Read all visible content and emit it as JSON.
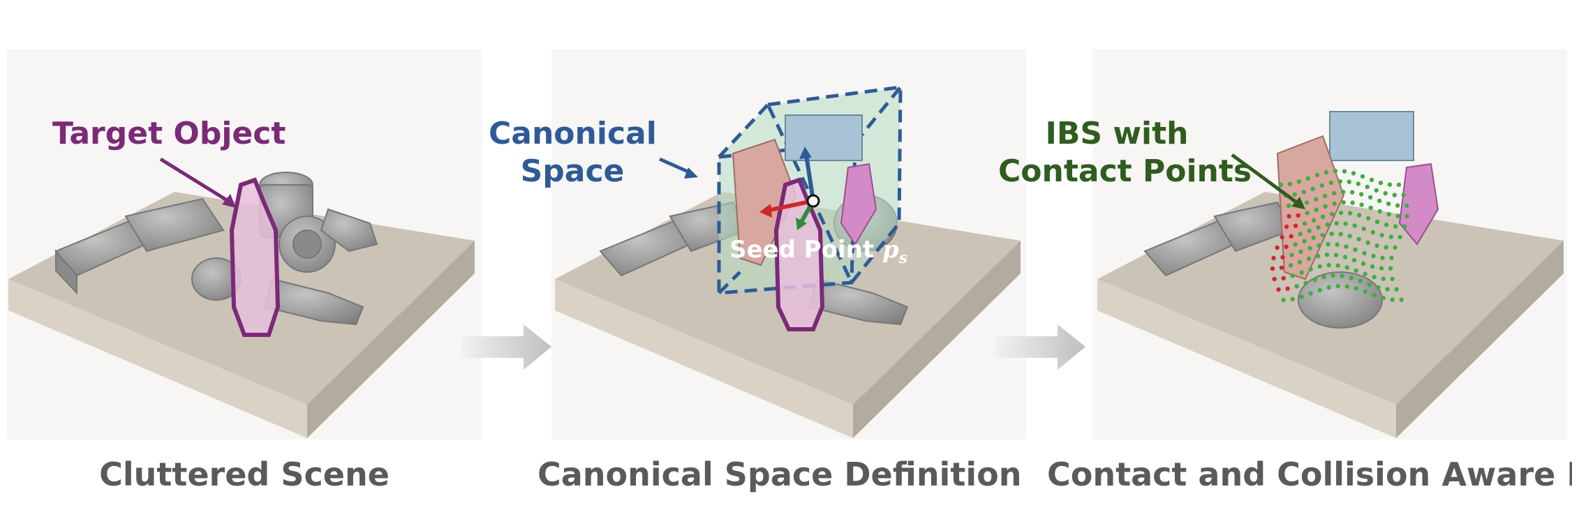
{
  "panels": [
    {
      "caption": "Cluttered Scene",
      "annotation": "Target Object"
    },
    {
      "caption": "Canonical Space Definition",
      "annotation_lines": [
        "Canonical",
        "Space"
      ],
      "seed_label": "Seed Point",
      "seed_symbol": "p",
      "seed_subscript": "s"
    },
    {
      "caption": "Contact and Collision Aware IBS",
      "annotation_lines": [
        "IBS with",
        "Contact Points"
      ]
    }
  ],
  "colors": {
    "target": "#7a2a76",
    "canonical": "#2f5a96",
    "ibs": "#2f5c1f",
    "caption": "#5a5a5a",
    "tray": "#c9c1b4",
    "objects": "#9a9a9a"
  }
}
